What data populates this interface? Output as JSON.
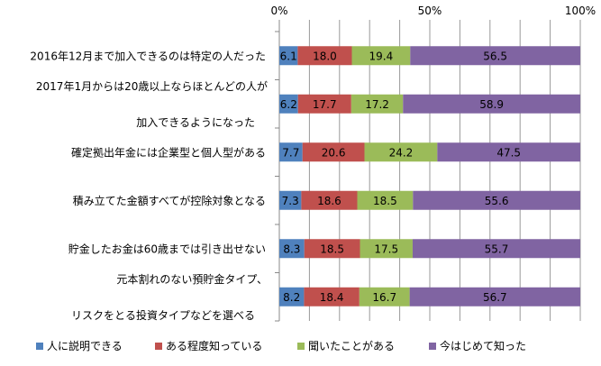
{
  "chart_data": {
    "type": "bar",
    "stacked": true,
    "orientation": "horizontal",
    "title": "",
    "xlabel": "",
    "ylabel": "",
    "xlim": [
      0,
      100
    ],
    "x_ticks": [
      "0%",
      "50%",
      "100%"
    ],
    "grid": true,
    "legend_position": "bottom",
    "categories": [
      [
        "2016年12月まで加入できるのは特定の人だった"
      ],
      [
        "2017年1月からは20歳以上ならほとんどの人が",
        "加入できるようになった"
      ],
      [
        "確定拠出年金には企業型と個人型がある"
      ],
      [
        "積み立てた金額すべてが控除対象となる"
      ],
      [
        "貯金したお金は60歳までは引き出せない"
      ],
      [
        "元本割れのない預貯金タイプ、",
        "リスクをとる投資タイプなどを選べる"
      ]
    ],
    "series": [
      {
        "name": "人に説明できる",
        "color": "#4f81bd",
        "values": [
          6.1,
          6.2,
          7.7,
          7.3,
          8.3,
          8.2
        ]
      },
      {
        "name": "ある程度知っている",
        "color": "#c0504d",
        "values": [
          18.0,
          17.7,
          20.6,
          18.6,
          18.5,
          18.4
        ]
      },
      {
        "name": "聞いたことがある",
        "color": "#9bbb59",
        "values": [
          19.4,
          17.2,
          24.2,
          18.5,
          17.5,
          16.7
        ]
      },
      {
        "name": "今はじめて知った",
        "color": "#8064a2",
        "values": [
          56.5,
          58.9,
          47.5,
          55.6,
          55.7,
          56.7
        ]
      }
    ]
  }
}
